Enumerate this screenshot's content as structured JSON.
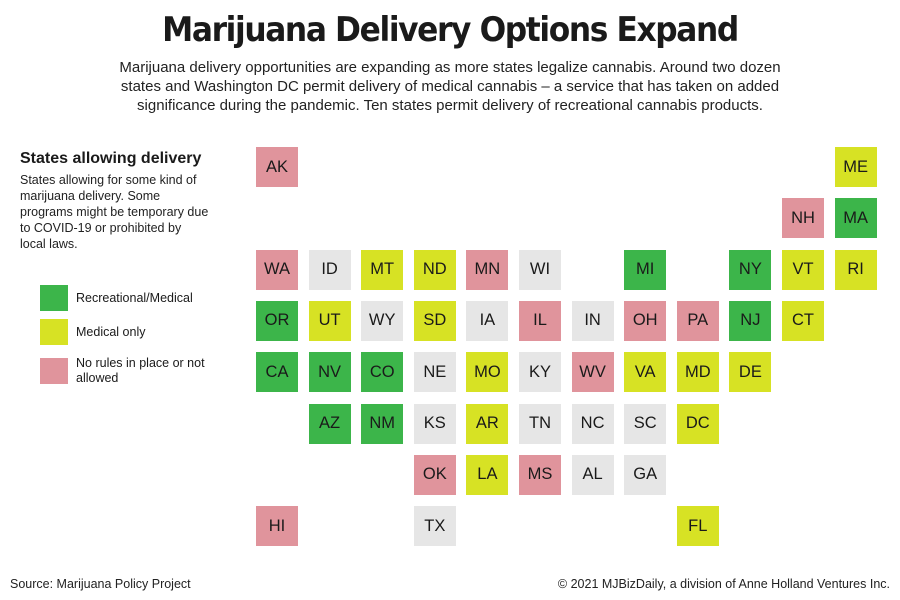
{
  "title": "Marijuana Delivery Options Expand",
  "subtitle": "Marijuana delivery opportunities are expanding as more states legalize cannabis. Around two dozen states and Washington DC permit delivery of medical cannabis – a service that has taken on added significance during the pandemic. Ten states permit delivery of recreational cannabis products.",
  "legend": {
    "title": "States allowing delivery",
    "description": "States allowing for some kind of marijuana delivery. Some programs might be temporary due to COVID-19 or prohibited by local laws.",
    "items": [
      {
        "key": "rec",
        "label": "Recreational/Medical",
        "color": "#3cb54a"
      },
      {
        "key": "med",
        "label": "Medical only",
        "color": "#d7e224"
      },
      {
        "key": "none",
        "label": "No rules in place or not allowed",
        "color": "#e0949c"
      }
    ]
  },
  "colors": {
    "rec": "#3cb54a",
    "med": "#d7e224",
    "none": "#e0949c",
    "blank": "#e6e6e6"
  },
  "chart_data": {
    "type": "tile-map",
    "states": [
      {
        "abbr": "AK",
        "status": "none",
        "col": 0,
        "row": 0
      },
      {
        "abbr": "ME",
        "status": "med",
        "col": 11,
        "row": 0
      },
      {
        "abbr": "NH",
        "status": "none",
        "col": 10,
        "row": 1
      },
      {
        "abbr": "MA",
        "status": "rec",
        "col": 11,
        "row": 1
      },
      {
        "abbr": "WA",
        "status": "none",
        "col": 0,
        "row": 2
      },
      {
        "abbr": "ID",
        "status": "blank",
        "col": 1,
        "row": 2
      },
      {
        "abbr": "MT",
        "status": "med",
        "col": 2,
        "row": 2
      },
      {
        "abbr": "ND",
        "status": "med",
        "col": 3,
        "row": 2
      },
      {
        "abbr": "MN",
        "status": "none",
        "col": 4,
        "row": 2
      },
      {
        "abbr": "WI",
        "status": "blank",
        "col": 5,
        "row": 2
      },
      {
        "abbr": "MI",
        "status": "rec",
        "col": 7,
        "row": 2
      },
      {
        "abbr": "NY",
        "status": "rec",
        "col": 9,
        "row": 2
      },
      {
        "abbr": "VT",
        "status": "med",
        "col": 10,
        "row": 2
      },
      {
        "abbr": "RI",
        "status": "med",
        "col": 11,
        "row": 2
      },
      {
        "abbr": "OR",
        "status": "rec",
        "col": 0,
        "row": 3
      },
      {
        "abbr": "UT",
        "status": "med",
        "col": 1,
        "row": 3
      },
      {
        "abbr": "WY",
        "status": "blank",
        "col": 2,
        "row": 3
      },
      {
        "abbr": "SD",
        "status": "med",
        "col": 3,
        "row": 3
      },
      {
        "abbr": "IA",
        "status": "blank",
        "col": 4,
        "row": 3
      },
      {
        "abbr": "IL",
        "status": "none",
        "col": 5,
        "row": 3
      },
      {
        "abbr": "IN",
        "status": "blank",
        "col": 6,
        "row": 3
      },
      {
        "abbr": "OH",
        "status": "none",
        "col": 7,
        "row": 3
      },
      {
        "abbr": "PA",
        "status": "none",
        "col": 8,
        "row": 3
      },
      {
        "abbr": "NJ",
        "status": "rec",
        "col": 9,
        "row": 3
      },
      {
        "abbr": "CT",
        "status": "med",
        "col": 10,
        "row": 3
      },
      {
        "abbr": "CA",
        "status": "rec",
        "col": 0,
        "row": 4
      },
      {
        "abbr": "NV",
        "status": "rec",
        "col": 1,
        "row": 4
      },
      {
        "abbr": "CO",
        "status": "rec",
        "col": 2,
        "row": 4
      },
      {
        "abbr": "NE",
        "status": "blank",
        "col": 3,
        "row": 4
      },
      {
        "abbr": "MO",
        "status": "med",
        "col": 4,
        "row": 4
      },
      {
        "abbr": "KY",
        "status": "blank",
        "col": 5,
        "row": 4
      },
      {
        "abbr": "WV",
        "status": "none",
        "col": 6,
        "row": 4
      },
      {
        "abbr": "VA",
        "status": "med",
        "col": 7,
        "row": 4
      },
      {
        "abbr": "MD",
        "status": "med",
        "col": 8,
        "row": 4
      },
      {
        "abbr": "DE",
        "status": "med",
        "col": 9,
        "row": 4
      },
      {
        "abbr": "AZ",
        "status": "rec",
        "col": 1,
        "row": 5
      },
      {
        "abbr": "NM",
        "status": "rec",
        "col": 2,
        "row": 5
      },
      {
        "abbr": "KS",
        "status": "blank",
        "col": 3,
        "row": 5
      },
      {
        "abbr": "AR",
        "status": "med",
        "col": 4,
        "row": 5
      },
      {
        "abbr": "TN",
        "status": "blank",
        "col": 5,
        "row": 5
      },
      {
        "abbr": "NC",
        "status": "blank",
        "col": 6,
        "row": 5
      },
      {
        "abbr": "SC",
        "status": "blank",
        "col": 7,
        "row": 5
      },
      {
        "abbr": "DC",
        "status": "med",
        "col": 8,
        "row": 5
      },
      {
        "abbr": "OK",
        "status": "none",
        "col": 3,
        "row": 6
      },
      {
        "abbr": "LA",
        "status": "med",
        "col": 4,
        "row": 6
      },
      {
        "abbr": "MS",
        "status": "none",
        "col": 5,
        "row": 6
      },
      {
        "abbr": "AL",
        "status": "blank",
        "col": 6,
        "row": 6
      },
      {
        "abbr": "GA",
        "status": "blank",
        "col": 7,
        "row": 6
      },
      {
        "abbr": "HI",
        "status": "none",
        "col": 0,
        "row": 7
      },
      {
        "abbr": "TX",
        "status": "blank",
        "col": 3,
        "row": 7
      },
      {
        "abbr": "FL",
        "status": "med",
        "col": 8,
        "row": 7
      }
    ]
  },
  "footer": {
    "source": "Source: Marijuana Policy Project",
    "copyright": "© 2021 MJBizDaily, a division of Anne Holland Ventures Inc."
  }
}
